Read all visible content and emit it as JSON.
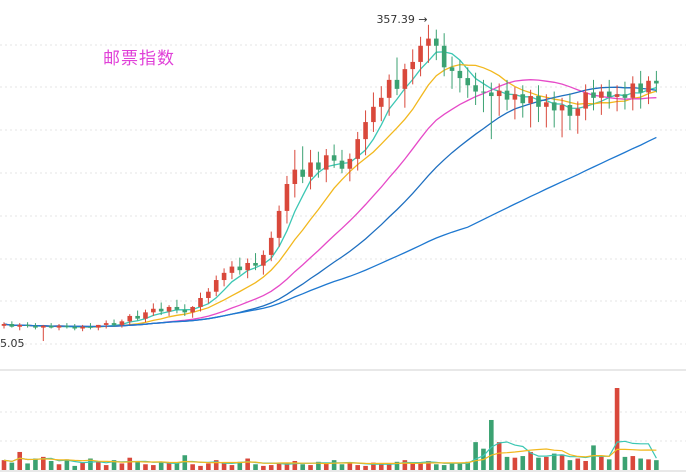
{
  "title": "邮票指数",
  "colors": {
    "up": "#d9483b",
    "down": "#3ba272",
    "ma5": "#3cc7b4",
    "ma10": "#f2b81e",
    "ma20": "#e64ac8",
    "ma30": "#1e6fc0",
    "ma60": "#1e78d0",
    "title": "#e040d8",
    "grid": "#e6e6e6"
  },
  "chart_data": [
    {
      "type": "candlestick",
      "title": "邮票指数",
      "annotations": [
        {
          "label": "357.39",
          "kind": "max-high",
          "value": 357.39
        },
        {
          "label": "5.05",
          "kind": "min-low",
          "value": 5.05
        }
      ],
      "ylim": [
        -25,
        385
      ],
      "grid": "horizontal dashed",
      "ohlc": [
        [
          22,
          26,
          19,
          24
        ],
        [
          24,
          27,
          20,
          21
        ],
        [
          21,
          25,
          17,
          23
        ],
        [
          23,
          26,
          20,
          22
        ],
        [
          22,
          25,
          18,
          20
        ],
        [
          20,
          23,
          5.05,
          22
        ],
        [
          22,
          25,
          19,
          20
        ],
        [
          20,
          24,
          17,
          22
        ],
        [
          22,
          25,
          19,
          21
        ],
        [
          21,
          24,
          17,
          19
        ],
        [
          19,
          23,
          16,
          21
        ],
        [
          21,
          25,
          18,
          20
        ],
        [
          20,
          23,
          17,
          23
        ],
        [
          23,
          28,
          19,
          25
        ],
        [
          25,
          29,
          21,
          23
        ],
        [
          23,
          29,
          20,
          27
        ],
        [
          27,
          35,
          23,
          33
        ],
        [
          33,
          39,
          28,
          30
        ],
        [
          30,
          40,
          26,
          37
        ],
        [
          37,
          47,
          33,
          41
        ],
        [
          41,
          48,
          34,
          38
        ],
        [
          38,
          45,
          33,
          43
        ],
        [
          43,
          51,
          36,
          40
        ],
        [
          40,
          46,
          33,
          37
        ],
        [
          37,
          44,
          31,
          43
        ],
        [
          43,
          59,
          38,
          53
        ],
        [
          53,
          64,
          47,
          60
        ],
        [
          60,
          78,
          55,
          73
        ],
        [
          73,
          86,
          66,
          81
        ],
        [
          81,
          94,
          74,
          88
        ],
        [
          88,
          98,
          79,
          84
        ],
        [
          84,
          97,
          75,
          92
        ],
        [
          92,
          103,
          84,
          89
        ],
        [
          89,
          106,
          79,
          101
        ],
        [
          101,
          127,
          94,
          120
        ],
        [
          120,
          156,
          110,
          150
        ],
        [
          150,
          189,
          136,
          180
        ],
        [
          180,
          218,
          165,
          196
        ],
        [
          196,
          222,
          181,
          188
        ],
        [
          188,
          218,
          174,
          204
        ],
        [
          204,
          216,
          187,
          196
        ],
        [
          196,
          219,
          182,
          212
        ],
        [
          212,
          224,
          198,
          206
        ],
        [
          206,
          218,
          192,
          197
        ],
        [
          197,
          214,
          183,
          208
        ],
        [
          208,
          238,
          195,
          230
        ],
        [
          230,
          262,
          212,
          249
        ],
        [
          249,
          282,
          238,
          266
        ],
        [
          266,
          289,
          250,
          276
        ],
        [
          276,
          302,
          256,
          296
        ],
        [
          296,
          321,
          279,
          286
        ],
        [
          286,
          314,
          265,
          308
        ],
        [
          308,
          330,
          291,
          316
        ],
        [
          316,
          344,
          300,
          334
        ],
        [
          334,
          357.39,
          315,
          342
        ],
        [
          342,
          352,
          318,
          334
        ],
        [
          334,
          348,
          300,
          310
        ],
        [
          310,
          322,
          286,
          306
        ],
        [
          306,
          318,
          282,
          298
        ],
        [
          298,
          310,
          276,
          290
        ],
        [
          290,
          304,
          268,
          283
        ],
        [
          283,
          296,
          260,
          282
        ],
        [
          282,
          293,
          230,
          278
        ],
        [
          278,
          292,
          256,
          284
        ],
        [
          284,
          296,
          262,
          274
        ],
        [
          274,
          288,
          252,
          280
        ],
        [
          280,
          290,
          254,
          270
        ],
        [
          270,
          285,
          243,
          278
        ],
        [
          278,
          290,
          249,
          266
        ],
        [
          266,
          280,
          243,
          271
        ],
        [
          271,
          283,
          243,
          262
        ],
        [
          262,
          276,
          232,
          268
        ],
        [
          268,
          281,
          240,
          256
        ],
        [
          256,
          272,
          236,
          264
        ],
        [
          264,
          291,
          251,
          282
        ],
        [
          282,
          296,
          262,
          276
        ],
        [
          276,
          291,
          257,
          283
        ],
        [
          283,
          296,
          264,
          277
        ],
        [
          277,
          290,
          261,
          280
        ],
        [
          280,
          294,
          263,
          276
        ],
        [
          276,
          300,
          262,
          292
        ],
        [
          292,
          306,
          264,
          282
        ],
        [
          282,
          300,
          269,
          295
        ],
        [
          295,
          306,
          282,
          292
        ]
      ],
      "volume": [
        12,
        9,
        22,
        8,
        14,
        16,
        11,
        7,
        13,
        5,
        9,
        14,
        10,
        6,
        12,
        8,
        15,
        11,
        7,
        6,
        10,
        8,
        9,
        18,
        7,
        5,
        8,
        12,
        9,
        6,
        10,
        14,
        7,
        5,
        6,
        8,
        9,
        11,
        7,
        6,
        10,
        9,
        12,
        7,
        8,
        6,
        5,
        9,
        8,
        7,
        10,
        12,
        8,
        9,
        11,
        7,
        6,
        9,
        8,
        10,
        34,
        26,
        61,
        34,
        16,
        15,
        17,
        22,
        15,
        16,
        20,
        19,
        12,
        14,
        11,
        30,
        16,
        13,
        100,
        16,
        17,
        14,
        13,
        12
      ],
      "ma_lines": [
        {
          "window": 5
        },
        {
          "window": 10
        },
        {
          "window": 20
        },
        {
          "window": 30
        },
        {
          "window": 60
        }
      ],
      "volume_ma_lines": [
        {
          "window": 5
        },
        {
          "window": 10
        }
      ]
    }
  ]
}
